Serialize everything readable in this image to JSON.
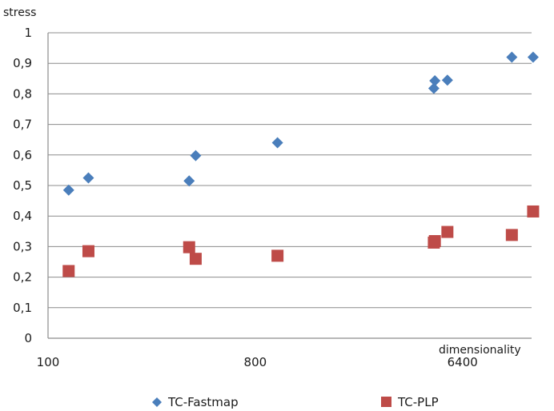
{
  "chart_data": {
    "type": "scatter",
    "xlabel": "dimensionality",
    "ylabel": "stress",
    "xscale": "log2",
    "xlim": [
      100,
      12800
    ],
    "ylim": [
      0,
      1
    ],
    "x_ticks": [
      "100",
      "800",
      "6400"
    ],
    "y_ticks": [
      "0",
      "0,1",
      "0,2",
      "0,3",
      "0,4",
      "0,5",
      "0,6",
      "0,7",
      "0,8",
      "0,9",
      "1"
    ],
    "grid": "horizontal",
    "legend": "bottom",
    "series": [
      {
        "name": "TC-Fastmap",
        "marker": "diamond",
        "color": "#4a7ebb",
        "x": [
          123,
          150,
          412,
          440,
          1000,
          4800,
          4850,
          5500,
          10500,
          13000
        ],
        "y": [
          0.485,
          0.525,
          0.515,
          0.598,
          0.64,
          0.818,
          0.843,
          0.845,
          0.92,
          0.92
        ]
      },
      {
        "name": "TC-PLP",
        "marker": "square",
        "color": "#be4b48",
        "x": [
          123,
          150,
          412,
          440,
          1000,
          4800,
          4850,
          5500,
          10500,
          13000
        ],
        "y": [
          0.22,
          0.285,
          0.298,
          0.26,
          0.27,
          0.313,
          0.318,
          0.348,
          0.338,
          0.415
        ]
      }
    ]
  }
}
